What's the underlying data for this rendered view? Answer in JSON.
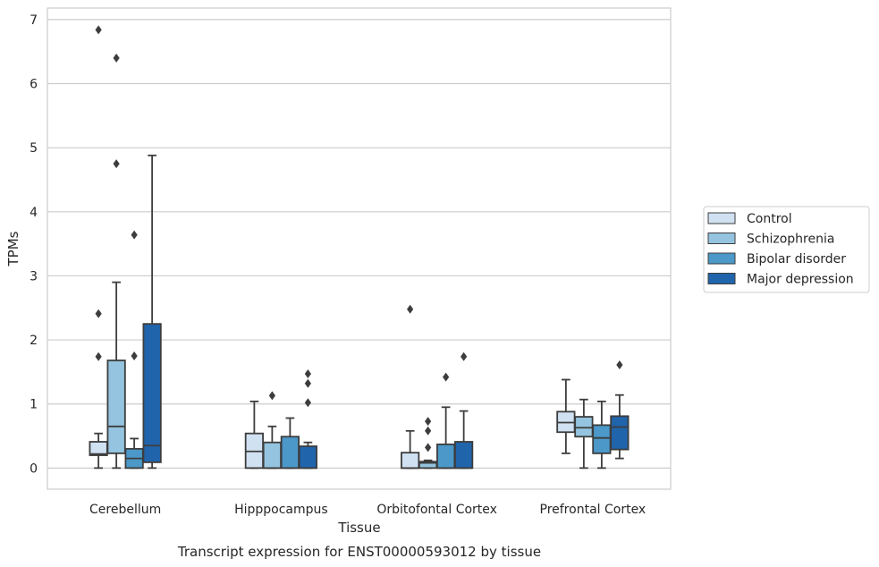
{
  "chart_data": {
    "type": "box",
    "categories": [
      "Cerebellum",
      "Hipppocampus",
      "Orbitofontal Cortex",
      "Prefrontal Cortex"
    ],
    "xlabel": "Tissue",
    "ylabel": "TPMs",
    "caption": "Transcript expression for ENST00000593012 by tissue",
    "ylim": [
      -0.33,
      7.18
    ],
    "yticks": [
      0,
      1,
      2,
      3,
      4,
      5,
      6,
      7
    ],
    "grid": true,
    "legend_position": "right",
    "series": [
      {
        "name": "Control",
        "color": "#d0e1f2",
        "boxes": [
          {
            "whisker_low": 0.0,
            "q1": 0.2,
            "median": 0.22,
            "q3": 0.41,
            "whisker_high": 0.54,
            "outliers": [
              1.74,
              2.41,
              6.84
            ]
          },
          {
            "whisker_low": 0.0,
            "q1": 0.0,
            "median": 0.26,
            "q3": 0.54,
            "whisker_high": 1.04,
            "outliers": []
          },
          {
            "whisker_low": 0.0,
            "q1": 0.0,
            "median": 0.0,
            "q3": 0.24,
            "whisker_high": 0.58,
            "outliers": [
              2.48
            ]
          },
          {
            "whisker_low": 0.23,
            "q1": 0.56,
            "median": 0.71,
            "q3": 0.88,
            "whisker_high": 1.38,
            "outliers": []
          }
        ]
      },
      {
        "name": "Schizophrenia",
        "color": "#94c4df",
        "boxes": [
          {
            "whisker_low": 0.0,
            "q1": 0.23,
            "median": 0.65,
            "q3": 1.68,
            "whisker_high": 2.9,
            "outliers": [
              4.75,
              6.4
            ]
          },
          {
            "whisker_low": 0.0,
            "q1": 0.0,
            "median": 0.0,
            "q3": 0.4,
            "whisker_high": 0.65,
            "outliers": [
              1.13
            ]
          },
          {
            "whisker_low": 0.0,
            "q1": 0.0,
            "median": 0.08,
            "q3": 0.1,
            "whisker_high": 0.12,
            "outliers": [
              0.32,
              0.58,
              0.73
            ]
          },
          {
            "whisker_low": 0.0,
            "q1": 0.49,
            "median": 0.63,
            "q3": 0.8,
            "whisker_high": 1.07,
            "outliers": []
          }
        ]
      },
      {
        "name": "Bipolar disorder",
        "color": "#4b98c9",
        "boxes": [
          {
            "whisker_low": 0.0,
            "q1": 0.0,
            "median": 0.15,
            "q3": 0.3,
            "whisker_high": 0.46,
            "outliers": [
              1.75,
              3.64
            ]
          },
          {
            "whisker_low": 0.0,
            "q1": 0.0,
            "median": 0.0,
            "q3": 0.49,
            "whisker_high": 0.78,
            "outliers": []
          },
          {
            "whisker_low": 0.0,
            "q1": 0.0,
            "median": 0.0,
            "q3": 0.37,
            "whisker_high": 0.95,
            "outliers": [
              1.42
            ]
          },
          {
            "whisker_low": 0.0,
            "q1": 0.23,
            "median": 0.47,
            "q3": 0.67,
            "whisker_high": 1.04,
            "outliers": []
          }
        ]
      },
      {
        "name": "Major depression",
        "color": "#2064ab",
        "boxes": [
          {
            "whisker_low": 0.0,
            "q1": 0.09,
            "median": 0.35,
            "q3": 2.25,
            "whisker_high": 4.88,
            "outliers": []
          },
          {
            "whisker_low": 0.0,
            "q1": 0.0,
            "median": 0.0,
            "q3": 0.34,
            "whisker_high": 0.4,
            "outliers": [
              1.02,
              1.32,
              1.47
            ]
          },
          {
            "whisker_low": 0.0,
            "q1": 0.0,
            "median": 0.0,
            "q3": 0.41,
            "whisker_high": 0.89,
            "outliers": [
              1.74
            ]
          },
          {
            "whisker_low": 0.15,
            "q1": 0.29,
            "median": 0.64,
            "q3": 0.81,
            "whisker_high": 1.14,
            "outliers": [
              1.61
            ]
          }
        ]
      }
    ]
  }
}
